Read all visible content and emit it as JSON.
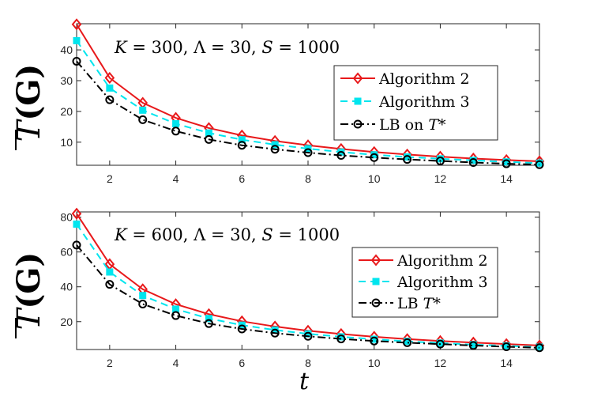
{
  "chart_data": [
    {
      "type": "line",
      "title": "",
      "xlabel": "",
      "ylabel_base": "T",
      "ylabel_arg": "(G)",
      "annotation": {
        "K": "300",
        "Lambda": "30",
        "S": "1000"
      },
      "xlim": [
        1,
        15
      ],
      "ylim": [
        2.5,
        48.5
      ],
      "xticks": [
        2,
        4,
        6,
        8,
        10,
        12,
        14
      ],
      "yticks": [
        10,
        20,
        30,
        40
      ],
      "x": [
        1,
        2,
        3,
        4,
        5,
        6,
        7,
        8,
        9,
        10,
        11,
        12,
        13,
        14,
        15
      ],
      "series": [
        {
          "name": "Algorithm 2",
          "color": "#e8191b",
          "marker": "diamond",
          "style": "solid",
          "values": [
            48.3,
            30.9,
            22.8,
            17.9,
            14.6,
            12.2,
            10.4,
            9.0,
            7.8,
            6.8,
            6.0,
            5.3,
            4.7,
            4.2,
            3.8
          ]
        },
        {
          "name": "Algorithm 3",
          "color": "#00e5ee",
          "marker": "square",
          "style": "dashed",
          "values": [
            43.0,
            27.6,
            20.4,
            16.0,
            13.0,
            10.8,
            9.2,
            7.9,
            6.8,
            5.9,
            5.2,
            4.6,
            4.1,
            3.6,
            3.2
          ]
        },
        {
          "name": "LB on T*",
          "color": "#000000",
          "marker": "circle",
          "style": "dashdot",
          "values": [
            36.3,
            23.8,
            17.3,
            13.6,
            10.9,
            9.0,
            7.7,
            6.6,
            5.7,
            5.0,
            4.4,
            3.9,
            3.4,
            3.0,
            2.7
          ]
        }
      ],
      "legend_placement": "center-right"
    },
    {
      "type": "line",
      "title": "",
      "xlabel": "t",
      "ylabel_base": "T",
      "ylabel_arg": "(G)",
      "annotation": {
        "K": "600",
        "Lambda": "30",
        "S": "1000"
      },
      "xlim": [
        1,
        15
      ],
      "ylim": [
        4,
        83
      ],
      "xticks": [
        2,
        4,
        6,
        8,
        10,
        12,
        14
      ],
      "yticks": [
        20,
        40,
        60,
        80
      ],
      "x": [
        1,
        2,
        3,
        4,
        5,
        6,
        7,
        8,
        9,
        10,
        11,
        12,
        13,
        14,
        15
      ],
      "series": [
        {
          "name": "Algorithm 2",
          "color": "#e8191b",
          "marker": "diamond",
          "style": "solid",
          "values": [
            82.0,
            53.0,
            38.6,
            30.0,
            24.3,
            20.2,
            17.2,
            14.8,
            12.9,
            11.3,
            10.0,
            8.9,
            8.0,
            7.1,
            6.3
          ]
        },
        {
          "name": "Algorithm 3",
          "color": "#00e5ee",
          "marker": "square",
          "style": "dashed",
          "values": [
            76.0,
            48.5,
            35.0,
            27.2,
            21.8,
            18.0,
            15.2,
            13.0,
            11.3,
            9.9,
            8.7,
            7.7,
            6.8,
            6.1,
            5.4
          ]
        },
        {
          "name": "LB T*",
          "color": "#000000",
          "marker": "circle",
          "style": "dashdot",
          "values": [
            64.0,
            41.4,
            30.1,
            23.5,
            18.9,
            15.8,
            13.4,
            11.6,
            10.1,
            8.9,
            7.9,
            7.1,
            6.3,
            5.6,
            5.0
          ]
        }
      ],
      "legend_placement": "center-right"
    }
  ]
}
